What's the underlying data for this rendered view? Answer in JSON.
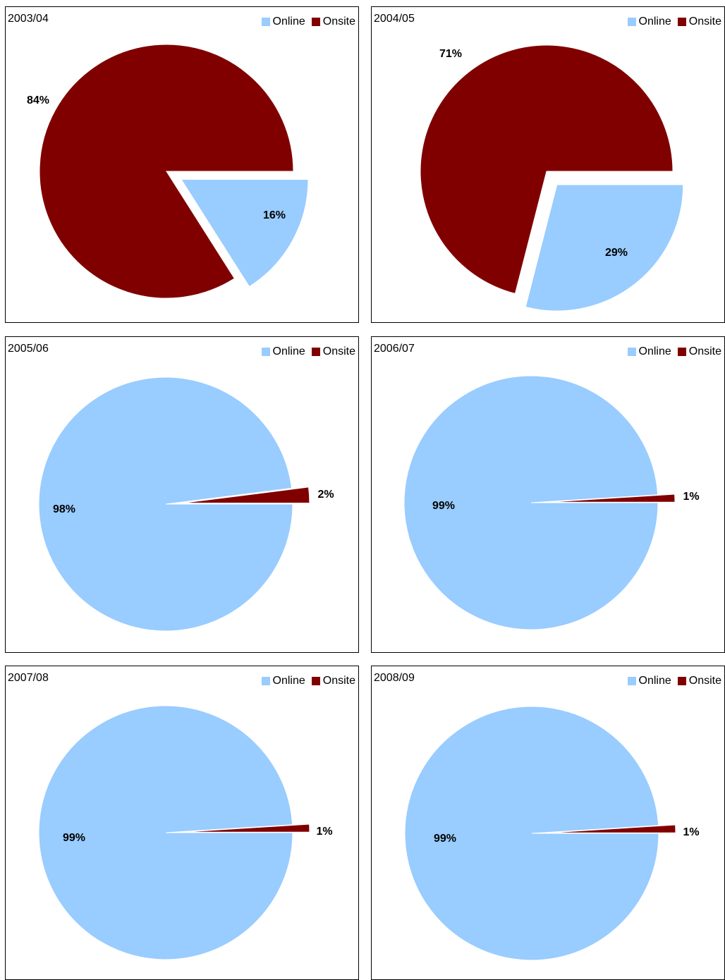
{
  "colors": {
    "online": "#99ccff",
    "onsite": "#800000"
  },
  "chart_data": [
    {
      "type": "pie",
      "title": "2003/04",
      "legend": "top-right",
      "labels": [
        "Online",
        "Onsite"
      ],
      "values": [
        16,
        84
      ],
      "value_labels": [
        "16%",
        "84%"
      ],
      "exploded": "Online"
    },
    {
      "type": "pie",
      "title": "2004/05",
      "legend": "top-right",
      "labels": [
        "Online",
        "Onsite"
      ],
      "values": [
        29,
        71
      ],
      "value_labels": [
        "29%",
        "71%"
      ],
      "exploded": "Online"
    },
    {
      "type": "pie",
      "title": "2005/06",
      "legend": "top-right",
      "labels": [
        "Online",
        "Onsite"
      ],
      "values": [
        98,
        2
      ],
      "value_labels": [
        "98%",
        "2%"
      ],
      "exploded": "Onsite"
    },
    {
      "type": "pie",
      "title": "2006/07",
      "legend": "top-right",
      "labels": [
        "Online",
        "Onsite"
      ],
      "values": [
        99,
        1
      ],
      "value_labels": [
        "99%",
        "1%"
      ],
      "exploded": "Onsite"
    },
    {
      "type": "pie",
      "title": "2007/08",
      "legend": "top-right",
      "labels": [
        "Online",
        "Onsite"
      ],
      "values": [
        99,
        1
      ],
      "value_labels": [
        "99%",
        "1%"
      ],
      "exploded": "Onsite"
    },
    {
      "type": "pie",
      "title": "2008/09",
      "legend": "top-right",
      "labels": [
        "Online",
        "Onsite"
      ],
      "values": [
        99,
        1
      ],
      "value_labels": [
        "99%",
        "1%"
      ],
      "exploded": "Onsite"
    }
  ]
}
